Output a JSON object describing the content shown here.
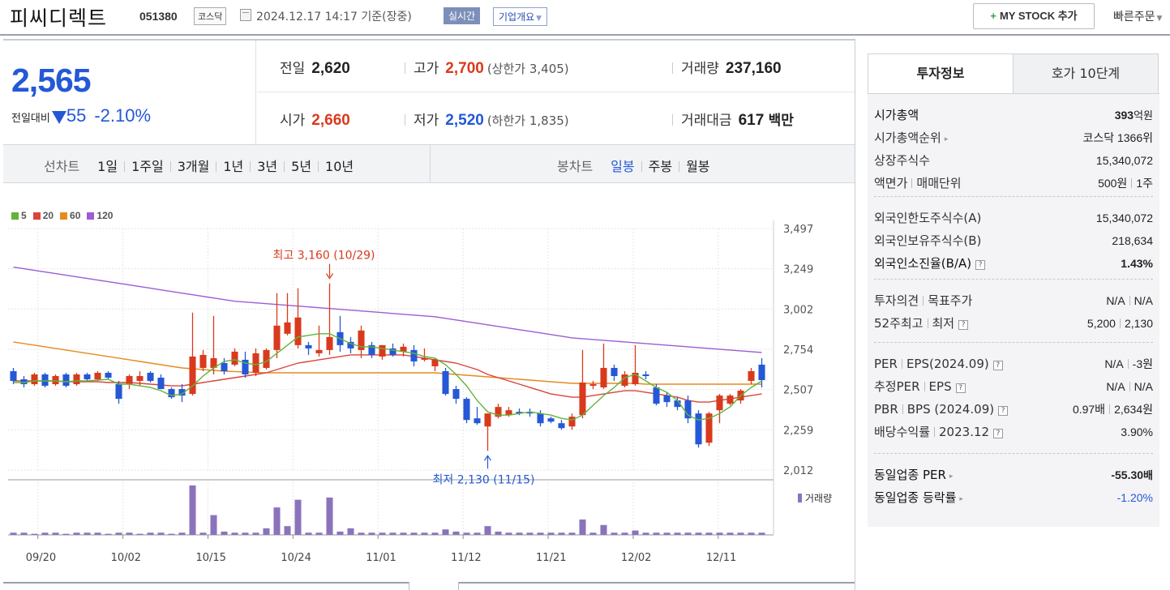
{
  "header": {
    "name": "피씨디렉트",
    "code": "051380",
    "market": "코스닥",
    "datetime": "2024.12.17 14:17",
    "basis": "기준(장중)",
    "realtime": "실시간",
    "corp_info": "기업개요",
    "mystock_label": "MY STOCK 추가",
    "quick_order": "빠른주문"
  },
  "quote": {
    "price": "2,565",
    "change_label": "전일대비",
    "change_amount": "55",
    "change_rate": "-2.10%",
    "prev_close_label": "전일",
    "prev_close": "2,620",
    "high_label": "고가",
    "high": "2,700",
    "upper_limit": "(상한가 3,405)",
    "volume_label": "거래량",
    "volume": "237,160",
    "open_label": "시가",
    "open": "2,660",
    "low_label": "저가",
    "low": "2,520",
    "lower_limit": "(하한가 1,835)",
    "amount_label": "거래대금",
    "amount": "617",
    "amount_unit": "백만"
  },
  "chart_tabs": {
    "line_title": "선차트",
    "line_items": [
      "1일",
      "1주일",
      "3개월",
      "1년",
      "3년",
      "5년",
      "10년"
    ],
    "candle_title": "봉차트",
    "candle_items": [
      "일봉",
      "주봉",
      "월봉"
    ],
    "candle_active": 0
  },
  "colors": {
    "up": "#d93a1d",
    "down": "#2458d6",
    "ma5": "#62b33a",
    "ma20": "#d9453b",
    "ma60": "#e68a1e",
    "ma120": "#9b5ed3",
    "volume": "#8b73bc"
  },
  "chart_data": {
    "type": "candlestick",
    "ma_legend": [
      "5",
      "20",
      "60",
      "120"
    ],
    "y_ticks": [
      "3,497",
      "3,249",
      "3,002",
      "2,754",
      "2,507",
      "2,259",
      "2,012"
    ],
    "ylim": [
      2012,
      3497
    ],
    "x_ticks": [
      "09/20",
      "10/02",
      "10/15",
      "10/24",
      "11/01",
      "11/12",
      "11/21",
      "12/02",
      "12/11"
    ],
    "max_annotation": "최고 3,160 (10/29)",
    "min_annotation": "최저 2,130 (11/15)",
    "volume_label": "거래량",
    "candles": [
      {
        "o": 2620,
        "h": 2640,
        "l": 2540,
        "c": 2560
      },
      {
        "o": 2570,
        "h": 2590,
        "l": 2520,
        "c": 2540
      },
      {
        "o": 2540,
        "h": 2610,
        "l": 2530,
        "c": 2600
      },
      {
        "o": 2600,
        "h": 2610,
        "l": 2520,
        "c": 2530
      },
      {
        "o": 2540,
        "h": 2600,
        "l": 2530,
        "c": 2590
      },
      {
        "o": 2600,
        "h": 2610,
        "l": 2520,
        "c": 2530
      },
      {
        "o": 2540,
        "h": 2610,
        "l": 2530,
        "c": 2600
      },
      {
        "o": 2600,
        "h": 2610,
        "l": 2560,
        "c": 2570
      },
      {
        "o": 2570,
        "h": 2620,
        "l": 2560,
        "c": 2610
      },
      {
        "o": 2610,
        "h": 2620,
        "l": 2570,
        "c": 2580
      },
      {
        "o": 2540,
        "h": 2560,
        "l": 2420,
        "c": 2450
      },
      {
        "o": 2540,
        "h": 2600,
        "l": 2510,
        "c": 2590
      },
      {
        "o": 2560,
        "h": 2620,
        "l": 2530,
        "c": 2590
      },
      {
        "o": 2610,
        "h": 2620,
        "l": 2550,
        "c": 2560
      },
      {
        "o": 2580,
        "h": 2600,
        "l": 2510,
        "c": 2510
      },
      {
        "o": 2510,
        "h": 2520,
        "l": 2450,
        "c": 2460
      },
      {
        "o": 2510,
        "h": 2540,
        "l": 2430,
        "c": 2470
      },
      {
        "o": 2480,
        "h": 2980,
        "l": 2470,
        "c": 2710
      },
      {
        "o": 2640,
        "h": 2750,
        "l": 2620,
        "c": 2720
      },
      {
        "o": 2640,
        "h": 2960,
        "l": 2600,
        "c": 2700
      },
      {
        "o": 2670,
        "h": 2700,
        "l": 2600,
        "c": 2620
      },
      {
        "o": 2660,
        "h": 2760,
        "l": 2650,
        "c": 2740
      },
      {
        "o": 2690,
        "h": 2740,
        "l": 2580,
        "c": 2600
      },
      {
        "o": 2610,
        "h": 2760,
        "l": 2590,
        "c": 2730
      },
      {
        "o": 2640,
        "h": 2760,
        "l": 2630,
        "c": 2750
      },
      {
        "o": 2750,
        "h": 3100,
        "l": 2700,
        "c": 2900
      },
      {
        "o": 2850,
        "h": 3100,
        "l": 2840,
        "c": 2920
      },
      {
        "o": 2780,
        "h": 3130,
        "l": 2760,
        "c": 2950
      },
      {
        "o": 2780,
        "h": 2800,
        "l": 2720,
        "c": 2760
      },
      {
        "o": 2730,
        "h": 2900,
        "l": 2710,
        "c": 2750
      },
      {
        "o": 2750,
        "h": 3160,
        "l": 2720,
        "c": 2830
      },
      {
        "o": 2860,
        "h": 2960,
        "l": 2740,
        "c": 2780
      },
      {
        "o": 2800,
        "h": 2830,
        "l": 2730,
        "c": 2760
      },
      {
        "o": 2750,
        "h": 2900,
        "l": 2700,
        "c": 2870
      },
      {
        "o": 2780,
        "h": 2800,
        "l": 2700,
        "c": 2720
      },
      {
        "o": 2710,
        "h": 2780,
        "l": 2690,
        "c": 2780
      },
      {
        "o": 2760,
        "h": 2790,
        "l": 2710,
        "c": 2720
      },
      {
        "o": 2740,
        "h": 2790,
        "l": 2710,
        "c": 2770
      },
      {
        "o": 2750,
        "h": 2780,
        "l": 2650,
        "c": 2680
      },
      {
        "o": 2700,
        "h": 2760,
        "l": 2680,
        "c": 2700
      },
      {
        "o": 2650,
        "h": 2700,
        "l": 2620,
        "c": 2690
      },
      {
        "o": 2620,
        "h": 2640,
        "l": 2470,
        "c": 2480
      },
      {
        "o": 2510,
        "h": 2530,
        "l": 2420,
        "c": 2450
      },
      {
        "o": 2450,
        "h": 2460,
        "l": 2300,
        "c": 2320
      },
      {
        "o": 2330,
        "h": 2400,
        "l": 2290,
        "c": 2300
      },
      {
        "o": 2280,
        "h": 2360,
        "l": 2130,
        "c": 2360
      },
      {
        "o": 2340,
        "h": 2420,
        "l": 2330,
        "c": 2400
      },
      {
        "o": 2350,
        "h": 2400,
        "l": 2340,
        "c": 2380
      },
      {
        "o": 2370,
        "h": 2390,
        "l": 2350,
        "c": 2360
      },
      {
        "o": 2370,
        "h": 2390,
        "l": 2340,
        "c": 2360
      },
      {
        "o": 2360,
        "h": 2380,
        "l": 2280,
        "c": 2300
      },
      {
        "o": 2330,
        "h": 2340,
        "l": 2300,
        "c": 2310
      },
      {
        "o": 2300,
        "h": 2320,
        "l": 2260,
        "c": 2270
      },
      {
        "o": 2280,
        "h": 2360,
        "l": 2260,
        "c": 2340
      },
      {
        "o": 2350,
        "h": 2750,
        "l": 2330,
        "c": 2550
      },
      {
        "o": 2530,
        "h": 2560,
        "l": 2510,
        "c": 2540
      },
      {
        "o": 2520,
        "h": 2790,
        "l": 2510,
        "c": 2640
      },
      {
        "o": 2640,
        "h": 2660,
        "l": 2560,
        "c": 2590
      },
      {
        "o": 2530,
        "h": 2620,
        "l": 2520,
        "c": 2600
      },
      {
        "o": 2540,
        "h": 2780,
        "l": 2530,
        "c": 2610
      },
      {
        "o": 2600,
        "h": 2620,
        "l": 2570,
        "c": 2590
      },
      {
        "o": 2520,
        "h": 2540,
        "l": 2410,
        "c": 2420
      },
      {
        "o": 2470,
        "h": 2490,
        "l": 2400,
        "c": 2430
      },
      {
        "o": 2440,
        "h": 2460,
        "l": 2380,
        "c": 2400
      },
      {
        "o": 2440,
        "h": 2470,
        "l": 2300,
        "c": 2330
      },
      {
        "o": 2360,
        "h": 2380,
        "l": 2150,
        "c": 2170
      },
      {
        "o": 2180,
        "h": 2370,
        "l": 2160,
        "c": 2360
      },
      {
        "o": 2380,
        "h": 2480,
        "l": 2300,
        "c": 2470
      },
      {
        "o": 2420,
        "h": 2480,
        "l": 2410,
        "c": 2470
      },
      {
        "o": 2440,
        "h": 2510,
        "l": 2420,
        "c": 2500
      },
      {
        "o": 2560,
        "h": 2640,
        "l": 2540,
        "c": 2620
      },
      {
        "o": 2660,
        "h": 2700,
        "l": 2520,
        "c": 2565
      }
    ],
    "ma5": [
      2550,
      2550,
      2560,
      2560,
      2560,
      2555,
      2560,
      2560,
      2565,
      2570,
      2540,
      2540,
      2530,
      2520,
      2500,
      2470,
      2480,
      2530,
      2590,
      2640,
      2680,
      2690,
      2670,
      2660,
      2680,
      2730,
      2780,
      2830,
      2840,
      2850,
      2850,
      2820,
      2790,
      2770,
      2770,
      2760,
      2750,
      2740,
      2730,
      2710,
      2700,
      2660,
      2600,
      2530,
      2440,
      2370,
      2350,
      2350,
      2360,
      2370,
      2360,
      2350,
      2330,
      2320,
      2350,
      2410,
      2470,
      2520,
      2580,
      2600,
      2560,
      2520,
      2490,
      2440,
      2350,
      2320,
      2330,
      2360,
      2400,
      2470,
      2520,
      2560
    ],
    "ma20": [
      2560,
      2560,
      2560,
      2560,
      2560,
      2555,
      2555,
      2555,
      2555,
      2550,
      2550,
      2550,
      2545,
      2540,
      2535,
      2530,
      2530,
      2540,
      2550,
      2560,
      2570,
      2580,
      2590,
      2600,
      2610,
      2630,
      2650,
      2670,
      2680,
      2690,
      2700,
      2710,
      2720,
      2720,
      2720,
      2720,
      2720,
      2720,
      2710,
      2700,
      2690,
      2680,
      2670,
      2650,
      2630,
      2600,
      2580,
      2560,
      2540,
      2520,
      2500,
      2480,
      2470,
      2460,
      2460,
      2470,
      2480,
      2490,
      2500,
      2500,
      2490,
      2480,
      2470,
      2460,
      2440,
      2430,
      2430,
      2440,
      2450,
      2460,
      2470,
      2480
    ],
    "ma60": [
      2800,
      2790,
      2780,
      2770,
      2760,
      2750,
      2740,
      2730,
      2720,
      2710,
      2700,
      2690,
      2680,
      2670,
      2660,
      2650,
      2640,
      2635,
      2630,
      2625,
      2620,
      2618,
      2615,
      2612,
      2610,
      2610,
      2610,
      2610,
      2610,
      2610,
      2610,
      2610,
      2610,
      2610,
      2610,
      2610,
      2610,
      2610,
      2610,
      2610,
      2610,
      2605,
      2600,
      2595,
      2590,
      2585,
      2580,
      2575,
      2570,
      2565,
      2560,
      2555,
      2550,
      2545,
      2545,
      2545,
      2545,
      2545,
      2545,
      2545,
      2540,
      2540,
      2540,
      2540,
      2540,
      2540,
      2540,
      2540,
      2540,
      2540,
      2540,
      2540
    ],
    "ma120": [
      3260,
      3250,
      3240,
      3230,
      3220,
      3210,
      3200,
      3190,
      3180,
      3170,
      3160,
      3150,
      3140,
      3130,
      3120,
      3110,
      3100,
      3090,
      3080,
      3070,
      3060,
      3050,
      3045,
      3040,
      3035,
      3030,
      3025,
      3020,
      3015,
      3010,
      3005,
      3000,
      2995,
      2990,
      2985,
      2980,
      2975,
      2970,
      2965,
      2960,
      2955,
      2945,
      2935,
      2925,
      2915,
      2905,
      2895,
      2885,
      2875,
      2865,
      2855,
      2845,
      2835,
      2825,
      2820,
      2815,
      2810,
      2805,
      2800,
      2795,
      2790,
      2785,
      2780,
      2775,
      2770,
      2765,
      2760,
      2755,
      2750,
      2745,
      2740,
      2735
    ],
    "volume": [
      2,
      2,
      1,
      2,
      2,
      1,
      2,
      2,
      2,
      1,
      2,
      2,
      1,
      2,
      2,
      1,
      2,
      45,
      2,
      18,
      3,
      2,
      2,
      2,
      6,
      25,
      8,
      32,
      2,
      2,
      34,
      3,
      6,
      2,
      2,
      2,
      2,
      2,
      2,
      2,
      2,
      5,
      3,
      2,
      2,
      8,
      3,
      2,
      2,
      2,
      2,
      2,
      2,
      2,
      14,
      2,
      9,
      2,
      2,
      4,
      2,
      2,
      2,
      2,
      2,
      2,
      2,
      2,
      2,
      2,
      2,
      2
    ]
  },
  "side": {
    "tabs": [
      "투자정보",
      "호가 10단계"
    ],
    "market_cap_label": "시가총액",
    "market_cap_value": "393",
    "market_cap_unit": "억원",
    "cap_rank_label": "시가총액순위",
    "cap_rank_value": "코스닥 1366위",
    "shares_label": "상장주식수",
    "shares_value": "15,340,072",
    "par_label": "액면가",
    "unit_label": "매매단위",
    "par_value": "500원",
    "unit_value": "1주",
    "foreign_limit_label": "외국인한도주식수(A)",
    "foreign_limit_value": "15,340,072",
    "foreign_hold_label": "외국인보유주식수(B)",
    "foreign_hold_value": "218,634",
    "foreign_ratio_label": "외국인소진율(B/A)",
    "foreign_ratio_value": "1.43%",
    "opinion_label": "투자의견",
    "target_label": "목표주가",
    "opinion_value": "N/A",
    "target_value": "N/A",
    "w52_high_label": "52주최고",
    "w52_low_label": "최저",
    "w52_high_value": "5,200",
    "w52_low_value": "2,130",
    "per_label": "PER",
    "eps_label": "EPS(2024.09)",
    "per_value": "N/A",
    "eps_value": "-3원",
    "est_per_label": "추정PER",
    "est_eps_label": "EPS",
    "est_per_value": "N/A",
    "est_eps_value": "N/A",
    "pbr_label": "PBR",
    "bps_label": "BPS (2024.09)",
    "pbr_value": "0.97배",
    "bps_value": "2,634원",
    "div_label": "배당수익률",
    "div_period": "2023.12",
    "div_value": "3.90%",
    "ind_per_label": "동일업종 PER",
    "ind_per_value": "-55.30",
    "ind_per_unit": "배",
    "ind_rate_label": "동일업종 등락률",
    "ind_rate_value": "-1.20%"
  }
}
